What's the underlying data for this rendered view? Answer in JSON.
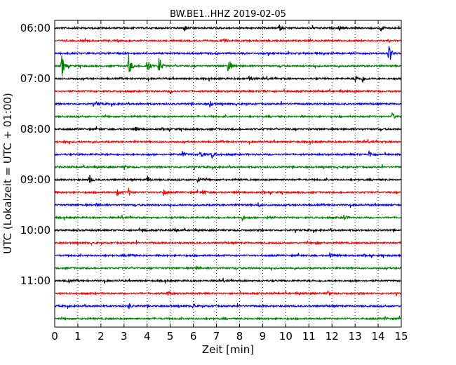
{
  "chart_data": {
    "type": "line",
    "title": "BW.BE1..HHZ 2019-02-05",
    "xlabel": "Zeit  [min]",
    "ylabel": "UTC (Lokalzeit = UTC + 01:00)",
    "xlim": [
      0,
      15
    ],
    "x_ticks": [
      "0",
      "1",
      "2",
      "3",
      "4",
      "5",
      "6",
      "7",
      "8",
      "9",
      "10",
      "11",
      "12",
      "13",
      "14",
      "15"
    ],
    "y_tick_labels": [
      "06:00",
      "07:00",
      "08:00",
      "09:00",
      "10:00",
      "11:00"
    ],
    "grid": "vertical dotted at each minute",
    "trace_colors": [
      "#000000",
      "#ff0000",
      "#0000ff",
      "#008000"
    ],
    "trace_start_times": [
      "06:00",
      "06:15",
      "06:30",
      "06:45",
      "07:00",
      "07:15",
      "07:30",
      "07:45",
      "08:00",
      "08:15",
      "08:30",
      "08:45",
      "09:00",
      "09:15",
      "09:30",
      "09:45",
      "10:00",
      "10:15",
      "10:30",
      "10:45",
      "11:00",
      "11:15",
      "11:30",
      "11:45"
    ],
    "events": [
      {
        "trace": "06:00",
        "minutes": [
          5.6,
          9.7,
          12.3,
          14.1
        ],
        "amplitude": 0.25
      },
      {
        "trace": "06:15",
        "minutes": [
          7.3
        ],
        "amplitude": 0.15
      },
      {
        "trace": "06:30",
        "minutes": [
          14.45
        ],
        "amplitude": 1.0
      },
      {
        "trace": "06:45",
        "minutes": [
          0.3,
          3.2,
          4.0,
          4.5,
          7.5
        ],
        "amplitude": 0.9
      },
      {
        "trace": "07:00",
        "minutes": [
          8.4,
          13.0,
          13.3
        ],
        "amplitude": 0.3
      },
      {
        "trace": "07:15",
        "minutes": [
          5.0,
          9.0
        ],
        "amplitude": 0.15
      },
      {
        "trace": "07:30",
        "minutes": [
          1.8,
          6.7
        ],
        "amplitude": 0.2
      },
      {
        "trace": "07:45",
        "minutes": [
          14.6
        ],
        "amplitude": 0.3
      },
      {
        "trace": "08:00",
        "minutes": [
          3.5
        ],
        "amplitude": 0.15
      },
      {
        "trace": "08:15",
        "minutes": [
          0.4
        ],
        "amplitude": 0.12
      },
      {
        "trace": "08:30",
        "minutes": [
          5.5,
          6.3,
          6.8,
          13.6
        ],
        "amplitude": 0.3
      },
      {
        "trace": "08:45",
        "minutes": [
          3.0
        ],
        "amplitude": 0.12
      },
      {
        "trace": "09:00",
        "minutes": [
          1.5,
          4.0,
          6.2
        ],
        "amplitude": 0.35
      },
      {
        "trace": "09:15",
        "minutes": [
          2.7,
          3.2,
          4.7,
          6.4
        ],
        "amplitude": 0.25
      },
      {
        "trace": "09:30",
        "minutes": [
          1.8,
          8.8
        ],
        "amplitude": 0.15
      },
      {
        "trace": "09:45",
        "minutes": [
          8.1,
          9.2,
          12.5
        ],
        "amplitude": 0.25
      },
      {
        "trace": "10:00",
        "minutes": [
          3.8,
          5.2
        ],
        "amplitude": 0.2
      },
      {
        "trace": "10:15",
        "minutes": [
          11.3
        ],
        "amplitude": 0.12
      },
      {
        "trace": "10:30",
        "minutes": [
          3.2,
          11.9
        ],
        "amplitude": 0.2
      },
      {
        "trace": "10:45",
        "minutes": [
          6.1
        ],
        "amplitude": 0.2
      },
      {
        "trace": "11:00",
        "minutes": [
          0.6
        ],
        "amplitude": 0.12
      },
      {
        "trace": "11:15",
        "minutes": [
          4.9,
          11.8
        ],
        "amplitude": 0.2
      },
      {
        "trace": "11:30",
        "minutes": [
          3.2,
          6.0
        ],
        "amplitude": 0.2
      },
      {
        "trace": "11:45",
        "minutes": [
          14.3
        ],
        "amplitude": 0.12
      }
    ]
  }
}
